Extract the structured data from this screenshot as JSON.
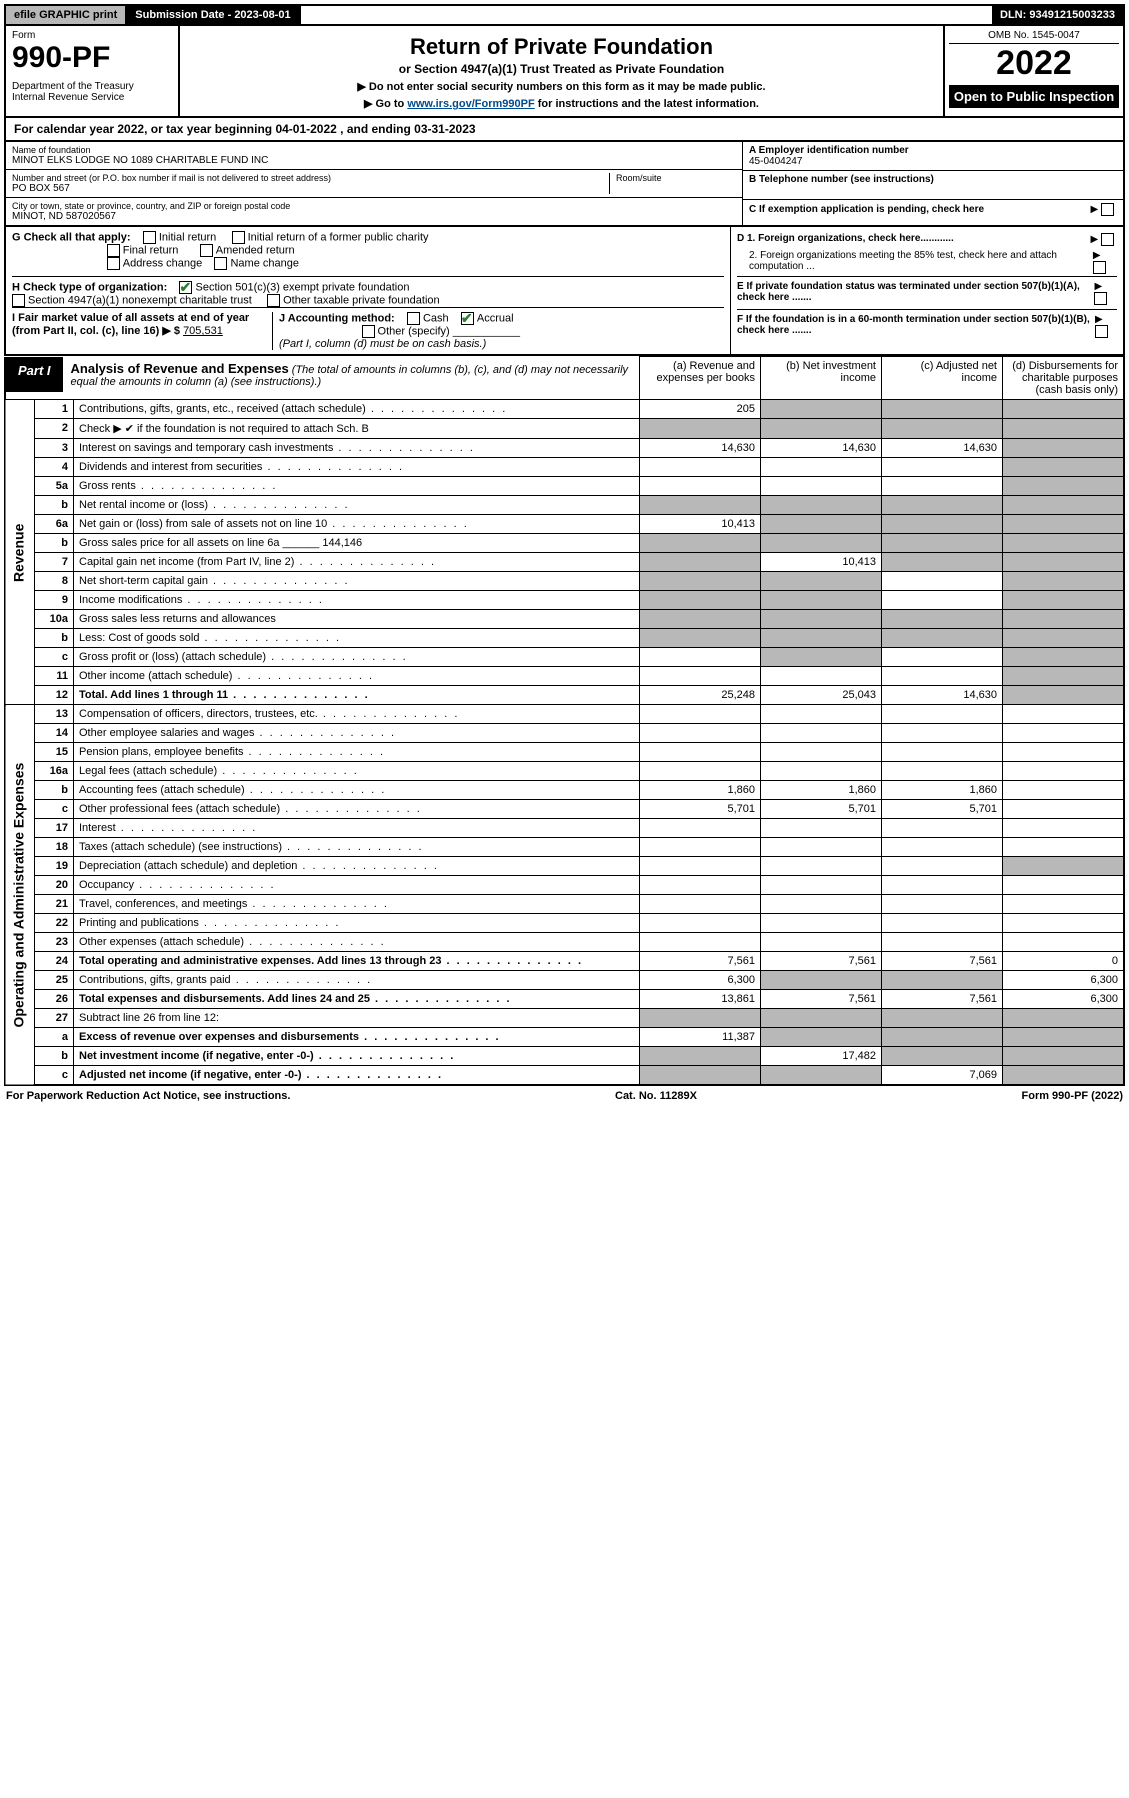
{
  "topbar": {
    "efile": "efile GRAPHIC print",
    "submission": "Submission Date - 2023-08-01",
    "dln": "DLN: 93491215003233"
  },
  "header": {
    "form_label": "Form",
    "form_number": "990-PF",
    "dept": "Department of the Treasury\nInternal Revenue Service",
    "title": "Return of Private Foundation",
    "subtitle": "or Section 4947(a)(1) Trust Treated as Private Foundation",
    "note1": "▶ Do not enter social security numbers on this form as it may be made public.",
    "note2_pre": "▶ Go to ",
    "note2_link": "www.irs.gov/Form990PF",
    "note2_post": " for instructions and the latest information.",
    "omb": "OMB No. 1545-0047",
    "year": "2022",
    "open": "Open to Public Inspection"
  },
  "cal_year": "For calendar year 2022, or tax year beginning 04-01-2022        , and ending 03-31-2023",
  "foundation": {
    "name_lbl": "Name of foundation",
    "name": "MINOT ELKS LODGE NO 1089 CHARITABLE FUND INC",
    "addr_lbl": "Number and street (or P.O. box number if mail is not delivered to street address)",
    "addr": "PO BOX 567",
    "room_lbl": "Room/suite",
    "city_lbl": "City or town, state or province, country, and ZIP or foreign postal code",
    "city": "MINOT, ND  587020567",
    "ein_lbl": "A Employer identification number",
    "ein": "45-0404247",
    "tel_lbl": "B Telephone number (see instructions)",
    "c_lbl": "C If exemption application is pending, check here",
    "d1_lbl": "D 1. Foreign organizations, check here............",
    "d2_lbl": "2. Foreign organizations meeting the 85% test, check here and attach computation ...",
    "e_lbl": "E If private foundation status was terminated under section 507(b)(1)(A), check here .......",
    "f_lbl": "F If the foundation is in a 60-month termination under section 507(b)(1)(B), check here ......."
  },
  "checks": {
    "g_lbl": "G Check all that apply:",
    "g_opts": [
      "Initial return",
      "Initial return of a former public charity",
      "Final return",
      "Amended return",
      "Address change",
      "Name change"
    ],
    "h_lbl": "H Check type of organization:",
    "h1": "Section 501(c)(3) exempt private foundation",
    "h2": "Section 4947(a)(1) nonexempt charitable trust",
    "h3": "Other taxable private foundation",
    "i_lbl": "I Fair market value of all assets at end of year (from Part II, col. (c), line 16) ▶ $",
    "i_val": "705,531",
    "j_lbl": "J Accounting method:",
    "j_cash": "Cash",
    "j_accrual": "Accrual",
    "j_other": "Other (specify)",
    "j_note": "(Part I, column (d) must be on cash basis.)"
  },
  "part1": {
    "badge": "Part I",
    "title": "Analysis of Revenue and Expenses",
    "title_note": "(The total of amounts in columns (b), (c), and (d) may not necessarily equal the amounts in column (a) (see instructions).)",
    "col_a": "(a) Revenue and expenses per books",
    "col_b": "(b) Net investment income",
    "col_c": "(c) Adjusted net income",
    "col_d": "(d) Disbursements for charitable purposes (cash basis only)"
  },
  "side_labels": {
    "revenue": "Revenue",
    "expenses": "Operating and Administrative Expenses"
  },
  "rows": [
    {
      "n": "1",
      "d": "Contributions, gifts, grants, etc., received (attach schedule)",
      "a": "205",
      "b_sh": true,
      "c_sh": true,
      "d_sh": true
    },
    {
      "n": "2",
      "d": "Check ▶ ✔ if the foundation is not required to attach Sch. B",
      "nodots": true,
      "a_sh": true,
      "b_sh": true,
      "c_sh": true,
      "d_sh": true
    },
    {
      "n": "3",
      "d": "Interest on savings and temporary cash investments",
      "a": "14,630",
      "b": "14,630",
      "c": "14,630",
      "d_sh": true
    },
    {
      "n": "4",
      "d": "Dividends and interest from securities",
      "d_sh": true
    },
    {
      "n": "5a",
      "d": "Gross rents",
      "d_sh": true
    },
    {
      "n": "b",
      "d": "Net rental income or (loss)",
      "a_sh": true,
      "b_sh": true,
      "c_sh": true,
      "d_sh": true
    },
    {
      "n": "6a",
      "d": "Net gain or (loss) from sale of assets not on line 10",
      "a": "10,413",
      "b_sh": true,
      "c_sh": true,
      "d_sh": true
    },
    {
      "n": "b",
      "d": "Gross sales price for all assets on line 6a ______ 144,146",
      "nodots": true,
      "a_sh": true,
      "b_sh": true,
      "c_sh": true,
      "d_sh": true
    },
    {
      "n": "7",
      "d": "Capital gain net income (from Part IV, line 2)",
      "a_sh": true,
      "b": "10,413",
      "c_sh": true,
      "d_sh": true
    },
    {
      "n": "8",
      "d": "Net short-term capital gain",
      "a_sh": true,
      "b_sh": true,
      "d_sh": true
    },
    {
      "n": "9",
      "d": "Income modifications",
      "a_sh": true,
      "b_sh": true,
      "d_sh": true
    },
    {
      "n": "10a",
      "d": "Gross sales less returns and allowances",
      "nodots": true,
      "a_sh": true,
      "b_sh": true,
      "c_sh": true,
      "d_sh": true
    },
    {
      "n": "b",
      "d": "Less: Cost of goods sold",
      "a_sh": true,
      "b_sh": true,
      "c_sh": true,
      "d_sh": true
    },
    {
      "n": "c",
      "d": "Gross profit or (loss) (attach schedule)",
      "b_sh": true,
      "d_sh": true
    },
    {
      "n": "11",
      "d": "Other income (attach schedule)",
      "d_sh": true
    },
    {
      "n": "12",
      "d": "Total. Add lines 1 through 11",
      "bold": true,
      "a": "25,248",
      "b": "25,043",
      "c": "14,630",
      "d_sh": true
    },
    {
      "n": "13",
      "d": "Compensation of officers, directors, trustees, etc."
    },
    {
      "n": "14",
      "d": "Other employee salaries and wages"
    },
    {
      "n": "15",
      "d": "Pension plans, employee benefits"
    },
    {
      "n": "16a",
      "d": "Legal fees (attach schedule)"
    },
    {
      "n": "b",
      "d": "Accounting fees (attach schedule)",
      "a": "1,860",
      "b": "1,860",
      "c": "1,860"
    },
    {
      "n": "c",
      "d": "Other professional fees (attach schedule)",
      "a": "5,701",
      "b": "5,701",
      "c": "5,701"
    },
    {
      "n": "17",
      "d": "Interest"
    },
    {
      "n": "18",
      "d": "Taxes (attach schedule) (see instructions)"
    },
    {
      "n": "19",
      "d": "Depreciation (attach schedule) and depletion",
      "d_sh": true
    },
    {
      "n": "20",
      "d": "Occupancy"
    },
    {
      "n": "21",
      "d": "Travel, conferences, and meetings"
    },
    {
      "n": "22",
      "d": "Printing and publications"
    },
    {
      "n": "23",
      "d": "Other expenses (attach schedule)"
    },
    {
      "n": "24",
      "d": "Total operating and administrative expenses. Add lines 13 through 23",
      "bold": true,
      "a": "7,561",
      "b": "7,561",
      "c": "7,561",
      "dd": "0"
    },
    {
      "n": "25",
      "d": "Contributions, gifts, grants paid",
      "a": "6,300",
      "b_sh": true,
      "c_sh": true,
      "dd": "6,300"
    },
    {
      "n": "26",
      "d": "Total expenses and disbursements. Add lines 24 and 25",
      "bold": true,
      "a": "13,861",
      "b": "7,561",
      "c": "7,561",
      "dd": "6,300"
    },
    {
      "n": "27",
      "d": "Subtract line 26 from line 12:",
      "nodots": true,
      "a_sh": true,
      "b_sh": true,
      "c_sh": true,
      "d_sh": true
    },
    {
      "n": "a",
      "d": "Excess of revenue over expenses and disbursements",
      "bold": true,
      "a": "11,387",
      "b_sh": true,
      "c_sh": true,
      "d_sh": true
    },
    {
      "n": "b",
      "d": "Net investment income (if negative, enter -0-)",
      "bold": true,
      "a_sh": true,
      "b": "17,482",
      "c_sh": true,
      "d_sh": true
    },
    {
      "n": "c",
      "d": "Adjusted net income (if negative, enter -0-)",
      "bold": true,
      "a_sh": true,
      "b_sh": true,
      "c": "7,069",
      "d_sh": true
    }
  ],
  "footer": {
    "left": "For Paperwork Reduction Act Notice, see instructions.",
    "mid": "Cat. No. 11289X",
    "right": "Form 990-PF (2022)"
  }
}
